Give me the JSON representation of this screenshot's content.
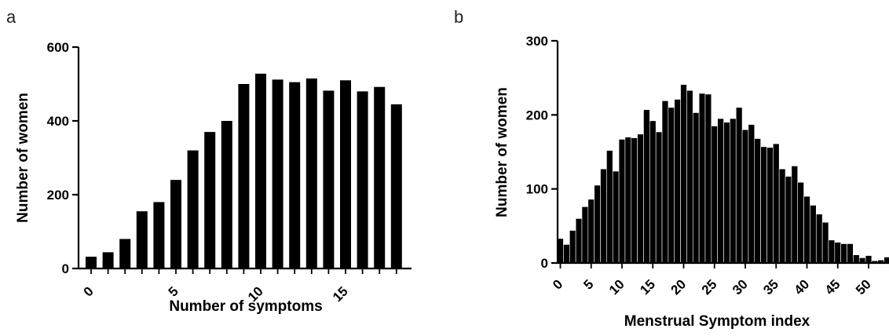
{
  "chart_data": [
    {
      "panel": "a",
      "type": "bar",
      "title": "",
      "xlabel": "Number of symptoms",
      "ylabel": "Number of women",
      "categories": [
        0,
        1,
        2,
        3,
        4,
        5,
        6,
        7,
        8,
        9,
        10,
        11,
        12,
        13,
        14,
        15,
        16,
        17,
        18
      ],
      "values": [
        32,
        44,
        80,
        155,
        180,
        240,
        320,
        370,
        400,
        500,
        528,
        512,
        505,
        515,
        482,
        510,
        480,
        492,
        445
      ],
      "xticks": [
        "0",
        "5",
        "10",
        "15"
      ],
      "yticks": [
        "0",
        "200",
        "400",
        "600"
      ],
      "ylim": [
        0,
        600
      ],
      "grid": false,
      "legend": "none",
      "color": "#000000"
    },
    {
      "panel": "b",
      "type": "bar",
      "title": "",
      "xlabel": "Menstrual Symptom index",
      "ylabel": "Number of women",
      "categories": [
        0,
        1,
        2,
        3,
        4,
        5,
        6,
        7,
        8,
        9,
        10,
        11,
        12,
        13,
        14,
        15,
        16,
        17,
        18,
        19,
        20,
        21,
        22,
        23,
        24,
        25,
        26,
        27,
        28,
        29,
        30,
        31,
        32,
        33,
        34,
        35,
        36,
        37,
        38,
        39,
        40,
        41,
        42,
        43,
        44,
        45,
        46,
        47,
        48,
        49,
        50,
        51,
        52,
        53
      ],
      "values": [
        33,
        25,
        44,
        60,
        76,
        86,
        105,
        127,
        152,
        124,
        167,
        170,
        169,
        174,
        207,
        192,
        177,
        219,
        210,
        221,
        241,
        233,
        203,
        229,
        228,
        185,
        195,
        190,
        195,
        210,
        180,
        187,
        168,
        157,
        156,
        161,
        127,
        117,
        131,
        109,
        90,
        78,
        66,
        55,
        31,
        28,
        26,
        26,
        11,
        7,
        10,
        3,
        4,
        8
      ],
      "xticks": [
        "0",
        "5",
        "10",
        "15",
        "20",
        "25",
        "30",
        "35",
        "40",
        "45",
        "50"
      ],
      "yticks": [
        "0",
        "100",
        "200",
        "300"
      ],
      "ylim": [
        0,
        300
      ],
      "xlim": [
        0,
        53.5
      ],
      "grid": false,
      "legend": "none",
      "color": "#000000",
      "edgecolor": "#ffffff"
    }
  ],
  "labels": {
    "panel_a": "a",
    "panel_b": "b"
  }
}
